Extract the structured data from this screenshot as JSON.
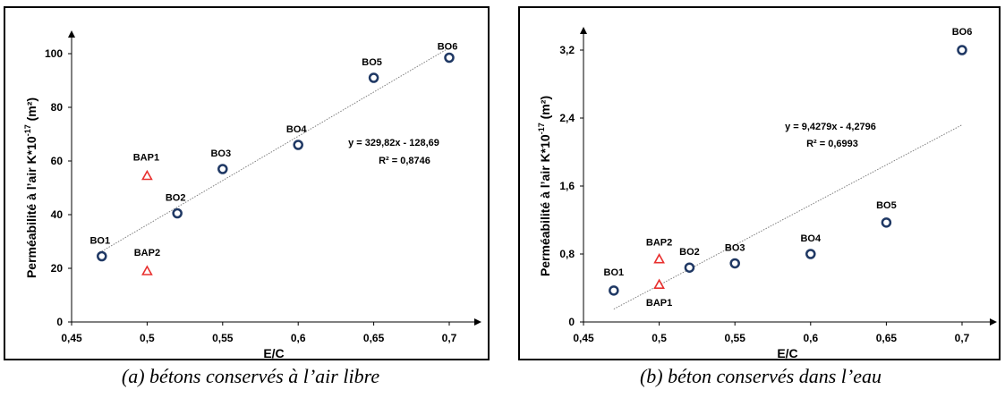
{
  "captions": {
    "a": "(a)  bétons conservés à l’air libre",
    "b": "(b)   béton conservés dans l’eau"
  },
  "colors": {
    "bo": "#1f3864",
    "bap": "#e8302f",
    "axis": "#000000",
    "trend": "#7f7f7f"
  },
  "chart_data": [
    {
      "type": "scatter",
      "title": "",
      "xlabel": "E/C",
      "ylabel": "Perméabilité à l’air   K*10",
      "ylabel_sup": "-17",
      "ylabel_unit": "(m²)",
      "x_ticks": [
        "0,45",
        "0,5",
        "0,55",
        "0,6",
        "0,65",
        "0,7"
      ],
      "y_ticks": [
        "0",
        "20",
        "40",
        "60",
        "80",
        "100"
      ],
      "xlim": [
        0.45,
        0.72
      ],
      "ylim": [
        0,
        110
      ],
      "grid": false,
      "series": [
        {
          "marker": "circle",
          "points": [
            {
              "x": 0.47,
              "y": 24.5,
              "label": "BO1"
            },
            {
              "x": 0.52,
              "y": 40.5,
              "label": "BO2"
            },
            {
              "x": 0.55,
              "y": 57,
              "label": "BO3"
            },
            {
              "x": 0.6,
              "y": 66,
              "label": "BO4"
            },
            {
              "x": 0.65,
              "y": 91,
              "label": "BO5"
            },
            {
              "x": 0.7,
              "y": 98.5,
              "label": "BO6"
            }
          ]
        },
        {
          "marker": "triangle",
          "points": [
            {
              "x": 0.5,
              "y": 54.5,
              "label": "BAP1"
            },
            {
              "x": 0.5,
              "y": 19,
              "label": "BAP2"
            }
          ]
        }
      ],
      "trendline": {
        "slope": 329.82,
        "intercept": -128.69,
        "x_range": [
          0.47,
          0.7
        ]
      },
      "equation": "y = 329,82x - 128,69",
      "r2": "R² = 0,8746"
    },
    {
      "type": "scatter",
      "title": "",
      "xlabel": "E/C",
      "ylabel": "Perméabilité à l’air   K*10",
      "ylabel_sup": "-17",
      "ylabel_unit": "(m²)",
      "x_ticks": [
        "0,45",
        "0,5",
        "0,55",
        "0,6",
        "0,65",
        "0,7"
      ],
      "y_ticks": [
        "0",
        "0,8",
        "1,6",
        "2,4",
        "3,2"
      ],
      "xlim": [
        0.45,
        0.72
      ],
      "ylim": [
        0,
        3.5
      ],
      "grid": false,
      "series": [
        {
          "marker": "circle",
          "points": [
            {
              "x": 0.47,
              "y": 0.37,
              "label": "BO1"
            },
            {
              "x": 0.52,
              "y": 0.64,
              "label": "BO2"
            },
            {
              "x": 0.55,
              "y": 0.69,
              "label": "BO3"
            },
            {
              "x": 0.6,
              "y": 0.8,
              "label": "BO4"
            },
            {
              "x": 0.65,
              "y": 1.17,
              "label": "BO5"
            },
            {
              "x": 0.7,
              "y": 3.2,
              "label": "BO6"
            }
          ]
        },
        {
          "marker": "triangle",
          "points": [
            {
              "x": 0.5,
              "y": 0.44,
              "label": "BAP1"
            },
            {
              "x": 0.5,
              "y": 0.74,
              "label": "BAP2"
            }
          ]
        }
      ],
      "trendline": {
        "slope": 9.4279,
        "intercept": -4.2796,
        "x_range": [
          0.47,
          0.7
        ]
      },
      "equation": "y = 9,4279x - 4,2796",
      "r2": "R² = 0,6993"
    }
  ]
}
